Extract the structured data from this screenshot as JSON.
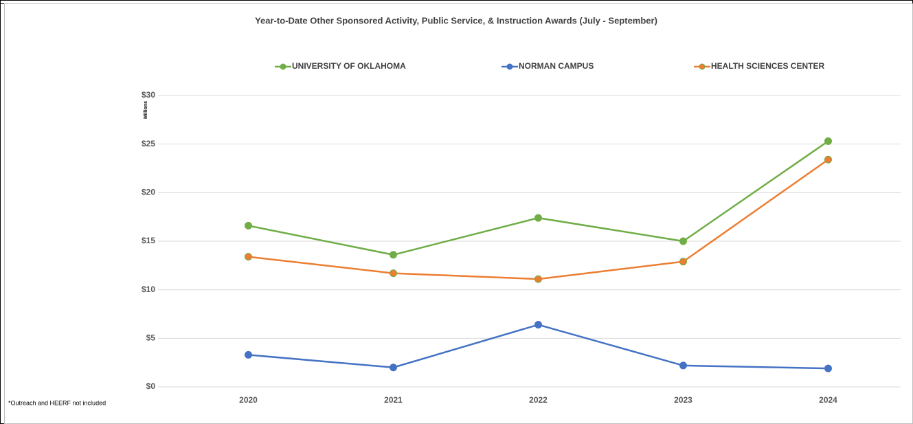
{
  "chart_data": {
    "type": "line",
    "title": "Year-to-Date Other Sponsored Activity, Public Service, & Instruction Awards (July - September)",
    "y_axis_label": "Millions",
    "annotation": "*Outreach and HEERF not included",
    "categories": [
      "2020",
      "2021",
      "2022",
      "2023",
      "2024"
    ],
    "series": [
      {
        "name": "UNIVERSITY OF OKLAHOMA",
        "color": "#70ad47",
        "values": [
          16.6,
          13.6,
          17.4,
          15.0,
          25.3
        ]
      },
      {
        "name": "NORMAN CAMPUS",
        "color": "#4472c4",
        "values": [
          3.3,
          2.0,
          6.4,
          2.2,
          1.9
        ]
      },
      {
        "name": "HEALTH SCIENCES CENTER",
        "color": "#ed7d31",
        "marker_edge_color": "#70ad47",
        "values": [
          13.4,
          11.7,
          11.1,
          12.9,
          23.4
        ]
      }
    ],
    "ylim": [
      0,
      30
    ],
    "yticks": [
      {
        "value": 0,
        "label": "$0"
      },
      {
        "value": 5,
        "label": "$5"
      },
      {
        "value": 10,
        "label": "$10"
      },
      {
        "value": 15,
        "label": "$15"
      },
      {
        "value": 20,
        "label": "$20"
      },
      {
        "value": 25,
        "label": "$25"
      },
      {
        "value": 30,
        "label": "$30"
      }
    ],
    "grid": true,
    "legend": "top"
  }
}
